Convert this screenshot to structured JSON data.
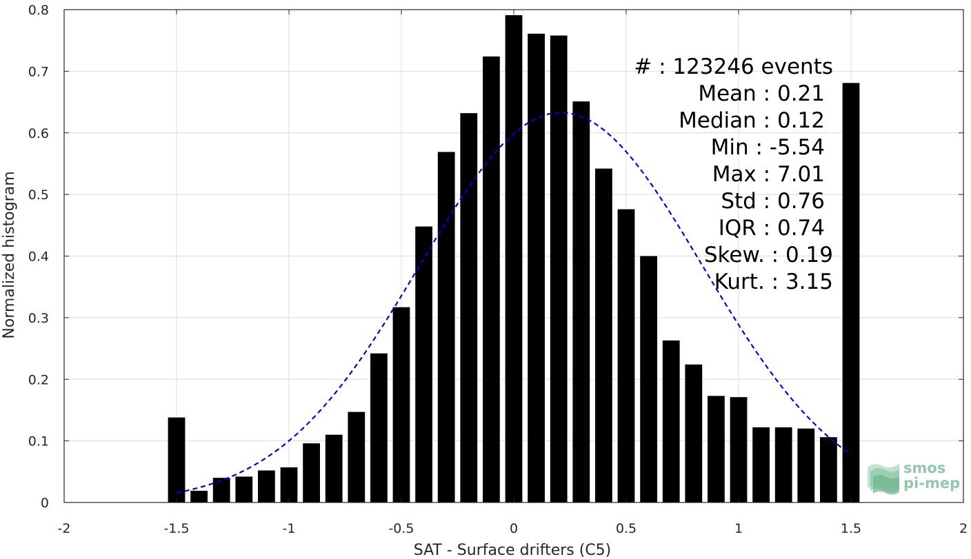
{
  "chart_data": {
    "type": "bar",
    "xlabel": "SAT - Surface drifters (C5)",
    "ylabel": "Normalized histogram",
    "xlim": [
      -2,
      2
    ],
    "ylim": [
      0,
      0.8
    ],
    "xticks": [
      -2,
      -1.5,
      -1,
      -0.5,
      0,
      0.5,
      1,
      1.5,
      2
    ],
    "yticks": [
      0,
      0.1,
      0.2,
      0.3,
      0.4,
      0.5,
      0.6,
      0.7,
      0.8
    ],
    "grid": true,
    "bar_color": "#000000",
    "fit_color": "#0000dd",
    "bins": {
      "centers": [
        -1.5,
        -1.4,
        -1.3,
        -1.2,
        -1.1,
        -1.0,
        -0.9,
        -0.8,
        -0.7,
        -0.6,
        -0.5,
        -0.4,
        -0.3,
        -0.2,
        -0.1,
        0.0,
        0.1,
        0.2,
        0.3,
        0.4,
        0.5,
        0.6,
        0.7,
        0.8,
        0.9,
        1.0,
        1.1,
        1.2,
        1.3,
        1.4,
        1.5
      ],
      "values": [
        0.138,
        0.019,
        0.04,
        0.042,
        0.052,
        0.057,
        0.096,
        0.11,
        0.147,
        0.242,
        0.317,
        0.448,
        0.569,
        0.632,
        0.724,
        0.791,
        0.761,
        0.758,
        0.651,
        0.542,
        0.476,
        0.4,
        0.263,
        0.224,
        0.173,
        0.171,
        0.122,
        0.122,
        0.12,
        0.106,
        0.681
      ]
    },
    "fit": {
      "type": "gaussian",
      "mean": 0.21,
      "std": 0.63,
      "peak": 0.633,
      "x_range": [
        -1.5,
        1.5
      ],
      "style": "dashed"
    }
  },
  "stats": {
    "events": "#  : 123246 events",
    "mean": "Mean : 0.21",
    "median": "Median : 0.12",
    "min": "Min : -5.54",
    "max": "Max : 7.01",
    "std": "Std : 0.76",
    "iqr": "IQR : 0.74",
    "skew": "Skew. : 0.19",
    "kurt": "Kurt. : 3.15"
  },
  "logo": {
    "line1": "smos",
    "line2": "pi-mep"
  }
}
